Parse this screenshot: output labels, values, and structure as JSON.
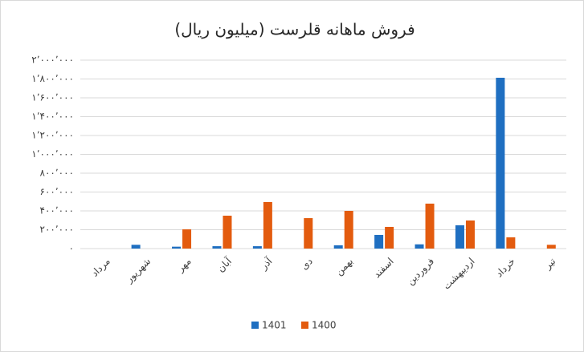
{
  "chart_data": {
    "type": "bar",
    "title": "فروش ماهانه قلرست (میلیون ریال)",
    "categories": [
      "مرداد",
      "شهریور",
      "مهر",
      "آبان",
      "آذر",
      "دی",
      "بهمن",
      "اسفند",
      "فروردین",
      "اردیبهشت",
      "خرداد",
      "تیر"
    ],
    "series": [
      {
        "name": "1401",
        "color": "#1f6fc1",
        "values": [
          0,
          40000,
          20000,
          25000,
          25000,
          0,
          35000,
          145000,
          45000,
          247000,
          1813000,
          0
        ]
      },
      {
        "name": "1400",
        "color": "#e35b0e",
        "values": [
          0,
          0,
          204000,
          349000,
          494000,
          323000,
          400000,
          230000,
          477000,
          298000,
          119000,
          40000
        ]
      }
    ],
    "ylim": [
      0,
      2000000
    ],
    "yticks": [
      {
        "value": 0,
        "label": "۰"
      },
      {
        "value": 200000,
        "label": "۲۰۰٬۰۰۰"
      },
      {
        "value": 400000,
        "label": "۴۰۰٬۰۰۰"
      },
      {
        "value": 600000,
        "label": "۶۰۰٬۰۰۰"
      },
      {
        "value": 800000,
        "label": "۸۰۰٬۰۰۰"
      },
      {
        "value": 1000000,
        "label": "۱٬۰۰۰٬۰۰۰"
      },
      {
        "value": 1200000,
        "label": "۱٬۲۰۰٬۰۰۰"
      },
      {
        "value": 1400000,
        "label": "۱٬۴۰۰٬۰۰۰"
      },
      {
        "value": 1600000,
        "label": "۱٬۶۰۰٬۰۰۰"
      },
      {
        "value": 1800000,
        "label": "۱٬۸۰۰٬۰۰۰"
      },
      {
        "value": 2000000,
        "label": "۲٬۰۰۰٬۰۰۰"
      }
    ],
    "grid": true,
    "legend": "bottom"
  }
}
